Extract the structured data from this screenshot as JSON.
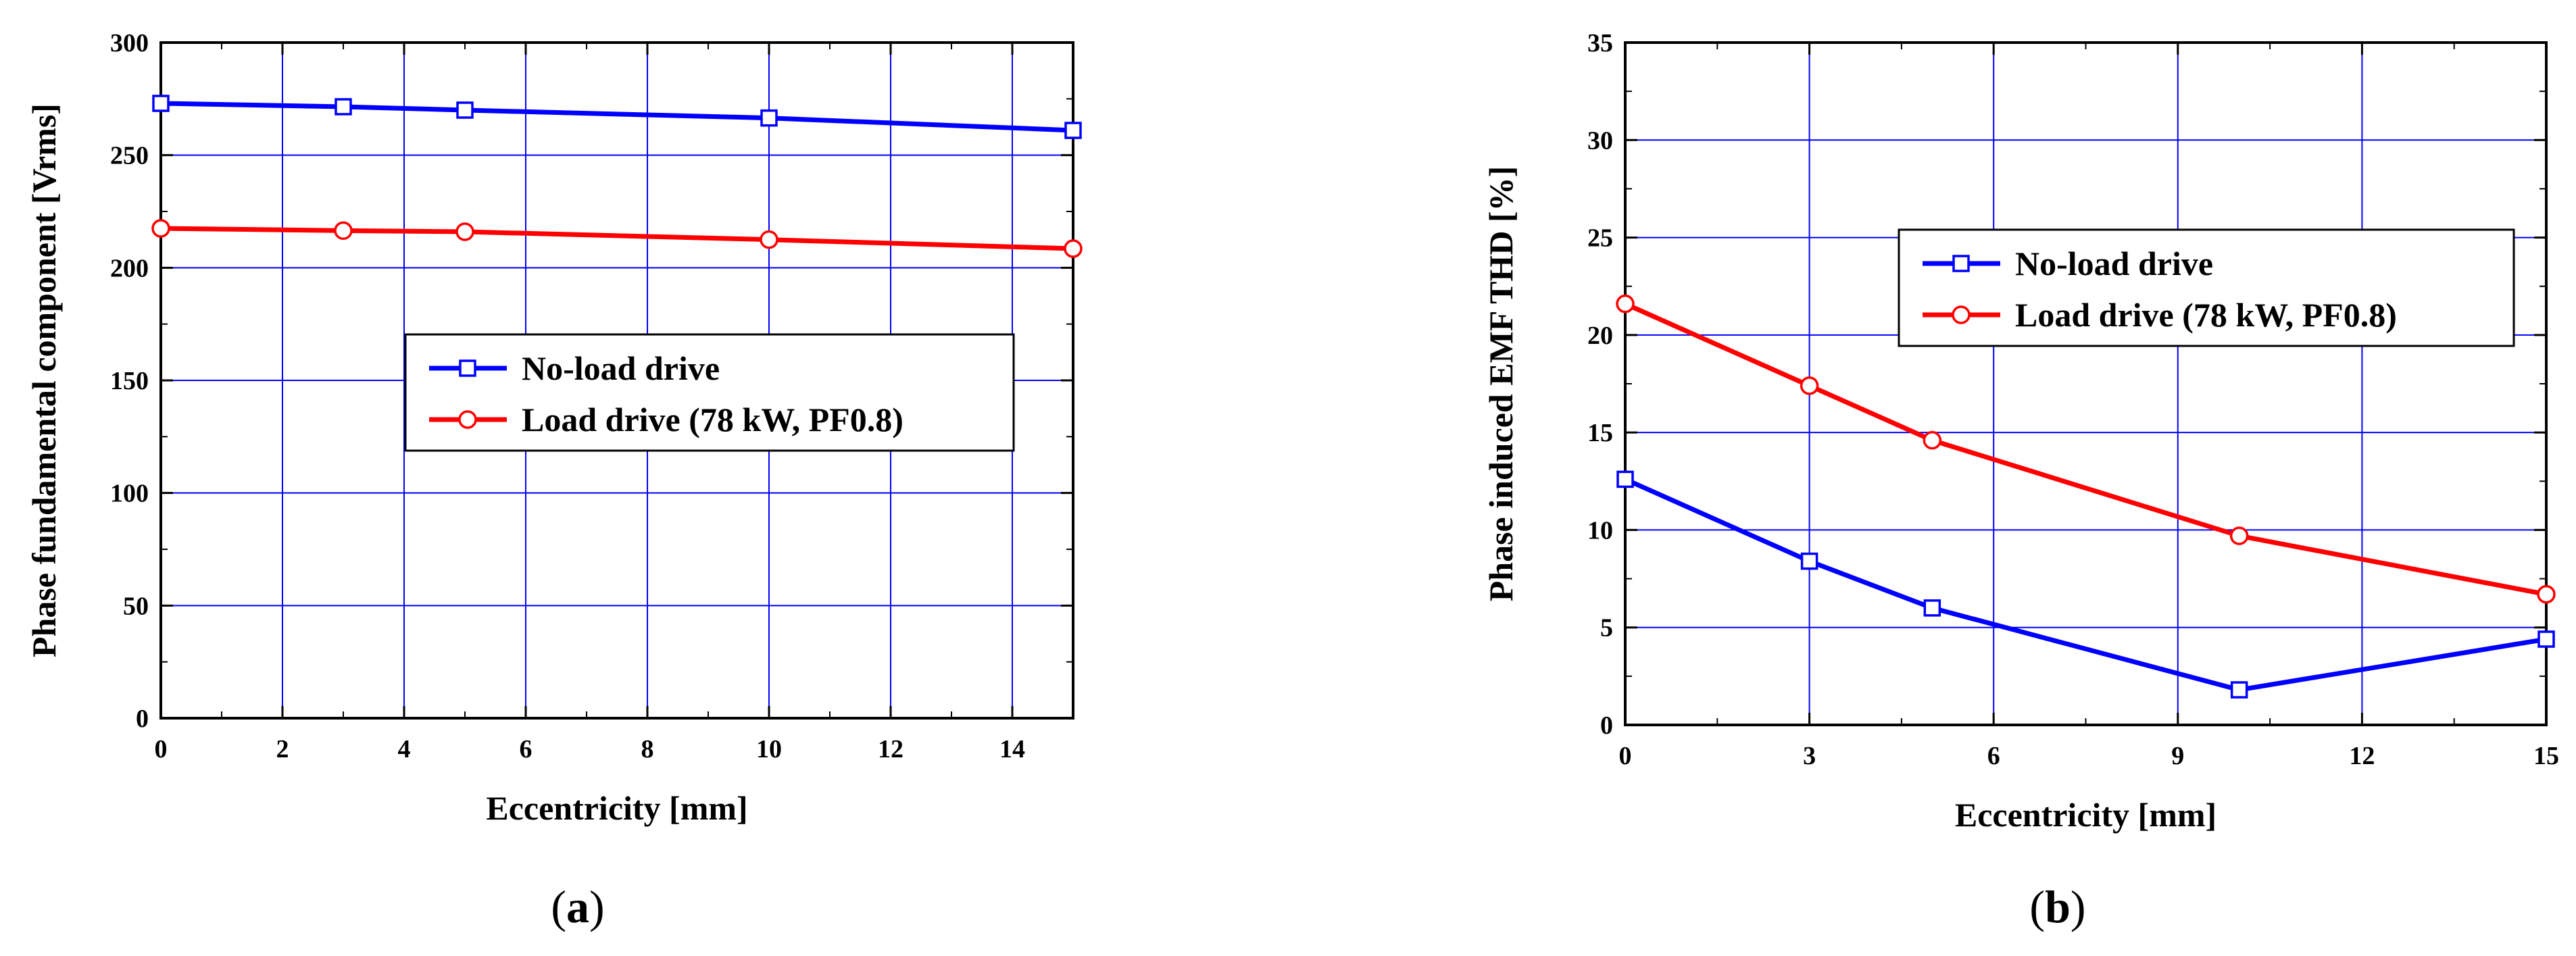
{
  "chart_data": [
    {
      "type": "line",
      "panel_label": "a",
      "xlabel": "Eccentricity [mm]",
      "ylabel": "Phase fundamental component [Vrms]",
      "xlim": [
        0,
        15
      ],
      "ylim": [
        0,
        300
      ],
      "xticks": [
        0,
        2,
        4,
        6,
        8,
        10,
        12,
        14
      ],
      "yticks": [
        0,
        50,
        100,
        150,
        200,
        250,
        300
      ],
      "grid": true,
      "legend_position": "center-right",
      "series": [
        {
          "name": "No-load drive",
          "color": "#0000ff",
          "marker": "square",
          "x": [
            0,
            3,
            5,
            10,
            15
          ],
          "y": [
            273,
            271.5,
            270,
            266.5,
            261
          ]
        },
        {
          "name": "Load drive (78 kW, PF0.8)",
          "color": "#ff0000",
          "marker": "circle",
          "x": [
            0,
            3,
            5,
            10,
            15
          ],
          "y": [
            217.5,
            216.5,
            216,
            212.5,
            208.5
          ]
        }
      ]
    },
    {
      "type": "line",
      "panel_label": "b",
      "xlabel": "Eccentricity [mm]",
      "ylabel": "Phase induced EMF THD [%]",
      "xlim": [
        0,
        15
      ],
      "ylim": [
        0,
        35
      ],
      "xticks": [
        0,
        3,
        6,
        9,
        12,
        15
      ],
      "yticks": [
        0,
        5,
        10,
        15,
        20,
        25,
        30,
        35
      ],
      "grid": true,
      "legend_position": "top-right",
      "series": [
        {
          "name": "No-load drive",
          "color": "#0000ff",
          "marker": "square",
          "x": [
            0,
            3,
            5,
            10,
            15
          ],
          "y": [
            12.6,
            8.4,
            6.0,
            1.8,
            4.4
          ]
        },
        {
          "name": "Load drive (78 kW, PF0.8)",
          "color": "#ff0000",
          "marker": "circle",
          "x": [
            0,
            3,
            5,
            10,
            15
          ],
          "y": [
            21.6,
            17.4,
            14.6,
            9.7,
            6.7
          ]
        }
      ]
    }
  ]
}
